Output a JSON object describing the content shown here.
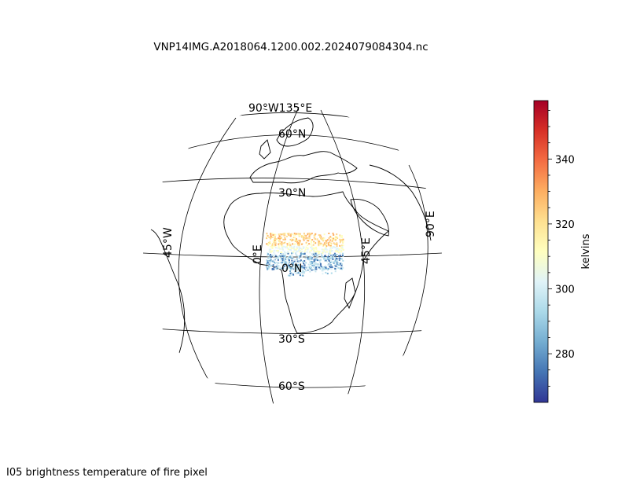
{
  "title": "VNP14IMG.A2018064.1200.002.2024079084304.nc",
  "footer": "I05 brightness temperature of fire pixel",
  "colorbar": {
    "label": "kelvins",
    "ticks": [
      280,
      300,
      320,
      340
    ],
    "range": [
      265,
      358
    ],
    "colors": [
      "#313695",
      "#4575b4",
      "#74add1",
      "#abd9e9",
      "#e0f3f8",
      "#ffffbf",
      "#fee090",
      "#fdae61",
      "#f46d43",
      "#d73027",
      "#a50026"
    ]
  },
  "graticule": {
    "lat_labels": [
      "60°N",
      "30°N",
      "0°N",
      "30°S",
      "60°S"
    ],
    "lon_labels": [
      "45°W",
      "0°E",
      "45°E",
      "90°E"
    ],
    "top_labels": "90°W135°E"
  }
}
